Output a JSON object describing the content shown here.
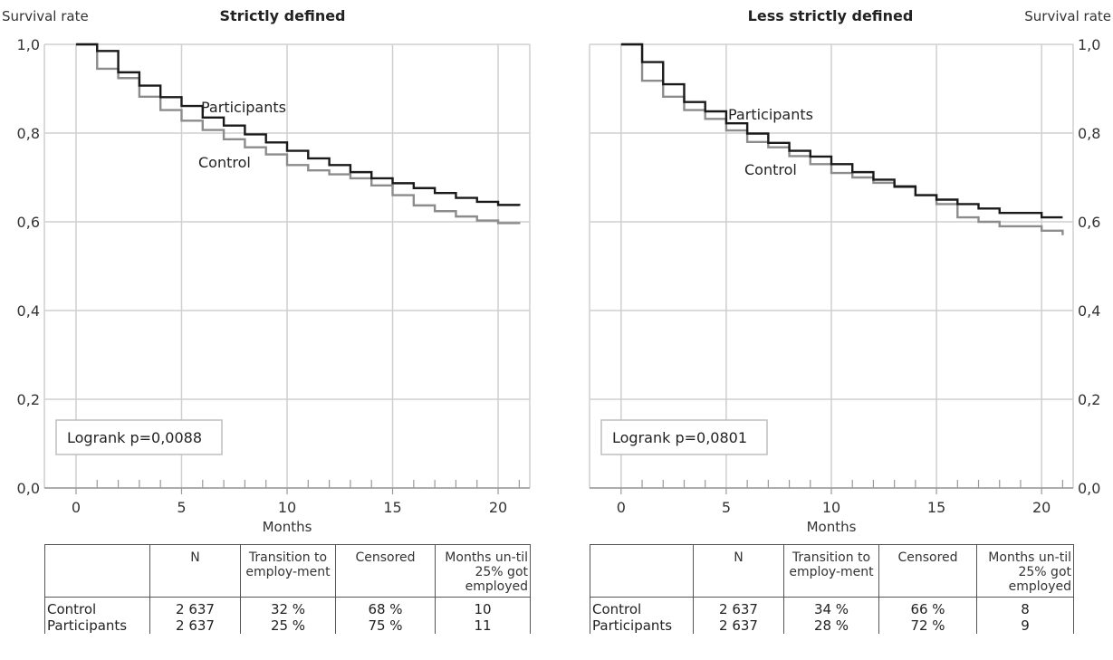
{
  "chart_data": [
    {
      "type": "line",
      "step": true,
      "title": "Strictly defined",
      "ylabel": "Survival rate",
      "xlabel": "Months",
      "xlim": [
        -1.5,
        21.5
      ],
      "ylim": [
        0,
        1
      ],
      "x_ticks": [
        0,
        5,
        10,
        15,
        20
      ],
      "x_tick_labels": [
        "0",
        "5",
        "10",
        "15",
        "20"
      ],
      "y_ticks": [
        0,
        0.2,
        0.4,
        0.6,
        0.8,
        1.0
      ],
      "y_tick_labels": [
        "0,0",
        "0,2",
        "0,4",
        "0,6",
        "0,8",
        "1,0"
      ],
      "y_axis_side": "left",
      "grid": true,
      "annotation": "Logrank p=0,0088",
      "series": [
        {
          "name": "Participants",
          "color": "#1a1a1a",
          "x": [
            0,
            1,
            2,
            3,
            4,
            5,
            6,
            7,
            8,
            9,
            10,
            11,
            12,
            13,
            14,
            15,
            16,
            17,
            18,
            19,
            20,
            21
          ],
          "y": [
            1.0,
            0.985,
            0.937,
            0.907,
            0.881,
            0.861,
            0.835,
            0.817,
            0.797,
            0.779,
            0.76,
            0.743,
            0.728,
            0.712,
            0.698,
            0.687,
            0.676,
            0.665,
            0.654,
            0.645,
            0.638,
            0.636
          ]
        },
        {
          "name": "Control",
          "color": "#8c8c8c",
          "x": [
            0,
            1,
            2,
            3,
            4,
            5,
            6,
            7,
            8,
            9,
            10,
            11,
            12,
            13,
            14,
            15,
            16,
            17,
            18,
            19,
            20,
            21
          ],
          "y": [
            1.0,
            0.945,
            0.924,
            0.882,
            0.852,
            0.828,
            0.807,
            0.786,
            0.768,
            0.752,
            0.728,
            0.716,
            0.707,
            0.698,
            0.682,
            0.66,
            0.637,
            0.624,
            0.612,
            0.603,
            0.597,
            0.595
          ]
        }
      ],
      "table": {
        "headers": [
          "",
          "N",
          "Transition to employ-ment",
          "Censored",
          "Months un-til 25% got employed"
        ],
        "rows": [
          [
            "Control",
            "2 637",
            "32 %",
            "68 %",
            "10"
          ],
          [
            "Participants",
            "2 637",
            "25 %",
            "75 %",
            "11"
          ]
        ]
      }
    },
    {
      "type": "line",
      "step": true,
      "title": "Less strictly defined",
      "ylabel": "Survival rate",
      "xlabel": "Months",
      "xlim": [
        -1.5,
        21.5
      ],
      "ylim": [
        0,
        1
      ],
      "x_ticks": [
        0,
        5,
        10,
        15,
        20
      ],
      "x_tick_labels": [
        "0",
        "5",
        "10",
        "15",
        "20"
      ],
      "y_ticks": [
        0,
        0.2,
        0.4,
        0.6,
        0.8,
        1.0
      ],
      "y_tick_labels": [
        "0,0",
        "0,2",
        "0,4",
        "0,6",
        "0,8",
        "1,0"
      ],
      "y_axis_side": "right",
      "grid": true,
      "annotation": "Logrank p=0,0801",
      "series": [
        {
          "name": "Participants",
          "color": "#1a1a1a",
          "x": [
            0,
            1,
            2,
            3,
            4,
            5,
            6,
            7,
            8,
            9,
            10,
            11,
            12,
            13,
            14,
            15,
            16,
            17,
            18,
            19,
            20,
            21
          ],
          "y": [
            1.0,
            0.96,
            0.91,
            0.87,
            0.849,
            0.822,
            0.799,
            0.778,
            0.76,
            0.747,
            0.73,
            0.712,
            0.695,
            0.68,
            0.66,
            0.65,
            0.64,
            0.63,
            0.62,
            0.62,
            0.61,
            0.61
          ]
        },
        {
          "name": "Control",
          "color": "#8c8c8c",
          "x": [
            0,
            1,
            2,
            3,
            4,
            5,
            6,
            7,
            8,
            9,
            10,
            11,
            12,
            13,
            14,
            15,
            16,
            17,
            18,
            19,
            20,
            21
          ],
          "y": [
            1.0,
            0.918,
            0.882,
            0.852,
            0.832,
            0.806,
            0.78,
            0.768,
            0.748,
            0.73,
            0.71,
            0.7,
            0.688,
            0.678,
            0.66,
            0.64,
            0.61,
            0.6,
            0.59,
            0.59,
            0.58,
            0.57
          ]
        }
      ],
      "table": {
        "headers": [
          "",
          "N",
          "Transition to employ-ment",
          "Censored",
          "Months un-til 25% got employed"
        ],
        "rows": [
          [
            "Control",
            "2 637",
            "34 %",
            "66 %",
            "8"
          ],
          [
            "Participants",
            "2 637",
            "28 %",
            "72 %",
            "9"
          ]
        ]
      }
    }
  ]
}
